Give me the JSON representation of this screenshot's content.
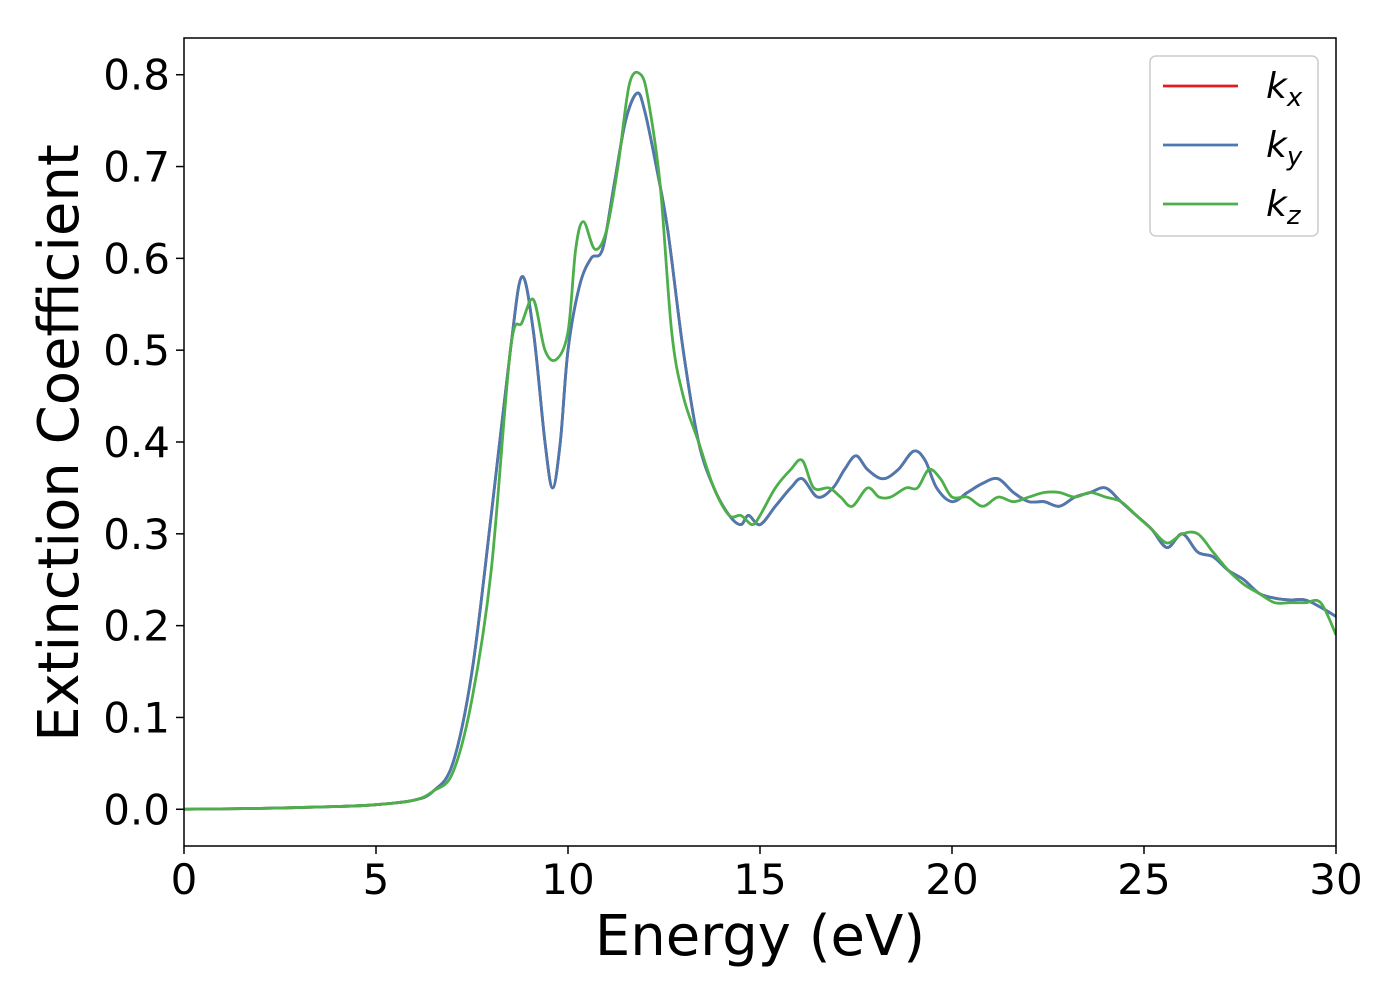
{
  "chart_data": {
    "type": "line",
    "xlabel": "Energy (eV)",
    "ylabel": "Extinction Coefficient",
    "xlim": [
      0,
      30
    ],
    "ylim": [
      -0.04,
      0.84
    ],
    "xticks": [
      0,
      5,
      10,
      15,
      20,
      25,
      30
    ],
    "xtick_labels": [
      "0",
      "5",
      "10",
      "15",
      "20",
      "25",
      "30"
    ],
    "yticks": [
      0.0,
      0.1,
      0.2,
      0.3,
      0.4,
      0.5,
      0.6,
      0.7,
      0.8
    ],
    "ytick_labels": [
      "0.0",
      "0.1",
      "0.2",
      "0.3",
      "0.4",
      "0.5",
      "0.6",
      "0.7",
      "0.8"
    ],
    "grid": false,
    "legend_position": "top-right",
    "series": [
      {
        "name": "k",
        "subscript": "x",
        "color": "#e41a1c",
        "x": [
          0,
          2,
          4,
          5,
          6,
          6.5,
          7,
          7.5,
          8,
          8.5,
          8.8,
          9.1,
          9.4,
          9.6,
          9.8,
          10.0,
          10.3,
          10.6,
          10.9,
          11.2,
          11.5,
          11.8,
          12.0,
          12.3,
          12.6,
          13.0,
          13.4,
          13.8,
          14.2,
          14.5,
          14.7,
          15.0,
          15.4,
          15.8,
          16.1,
          16.5,
          16.9,
          17.2,
          17.5,
          17.8,
          18.2,
          18.6,
          19.0,
          19.3,
          19.6,
          20.0,
          20.4,
          20.8,
          21.2,
          21.6,
          22.0,
          22.4,
          22.8,
          23.2,
          23.6,
          24.0,
          24.4,
          24.8,
          25.2,
          25.6,
          26.0,
          26.4,
          26.8,
          27.2,
          27.6,
          28.0,
          28.4,
          28.8,
          29.2,
          29.6,
          30.0
        ],
        "values": [
          0.0,
          0.001,
          0.003,
          0.005,
          0.01,
          0.02,
          0.05,
          0.15,
          0.32,
          0.5,
          0.58,
          0.52,
          0.4,
          0.35,
          0.4,
          0.5,
          0.57,
          0.6,
          0.61,
          0.68,
          0.75,
          0.78,
          0.76,
          0.7,
          0.63,
          0.5,
          0.4,
          0.35,
          0.32,
          0.31,
          0.32,
          0.31,
          0.33,
          0.35,
          0.36,
          0.34,
          0.35,
          0.37,
          0.385,
          0.37,
          0.36,
          0.37,
          0.39,
          0.38,
          0.35,
          0.335,
          0.345,
          0.355,
          0.36,
          0.345,
          0.335,
          0.335,
          0.33,
          0.34,
          0.345,
          0.35,
          0.335,
          0.32,
          0.305,
          0.285,
          0.3,
          0.28,
          0.275,
          0.26,
          0.25,
          0.235,
          0.23,
          0.228,
          0.228,
          0.22,
          0.21
        ]
      },
      {
        "name": "k",
        "subscript": "y",
        "color": "#4a7ab0",
        "x": [
          0,
          2,
          4,
          5,
          6,
          6.5,
          7,
          7.5,
          8,
          8.5,
          8.8,
          9.1,
          9.4,
          9.6,
          9.8,
          10.0,
          10.3,
          10.6,
          10.9,
          11.2,
          11.5,
          11.8,
          12.0,
          12.3,
          12.6,
          13.0,
          13.4,
          13.8,
          14.2,
          14.5,
          14.7,
          15.0,
          15.4,
          15.8,
          16.1,
          16.5,
          16.9,
          17.2,
          17.5,
          17.8,
          18.2,
          18.6,
          19.0,
          19.3,
          19.6,
          20.0,
          20.4,
          20.8,
          21.2,
          21.6,
          22.0,
          22.4,
          22.8,
          23.2,
          23.6,
          24.0,
          24.4,
          24.8,
          25.2,
          25.6,
          26.0,
          26.4,
          26.8,
          27.2,
          27.6,
          28.0,
          28.4,
          28.8,
          29.2,
          29.6,
          30.0
        ],
        "values": [
          0.0,
          0.001,
          0.003,
          0.005,
          0.01,
          0.02,
          0.05,
          0.15,
          0.32,
          0.5,
          0.58,
          0.52,
          0.4,
          0.35,
          0.4,
          0.5,
          0.57,
          0.6,
          0.61,
          0.68,
          0.75,
          0.78,
          0.76,
          0.7,
          0.63,
          0.5,
          0.4,
          0.35,
          0.32,
          0.31,
          0.32,
          0.31,
          0.33,
          0.35,
          0.36,
          0.34,
          0.35,
          0.37,
          0.385,
          0.37,
          0.36,
          0.37,
          0.39,
          0.38,
          0.35,
          0.335,
          0.345,
          0.355,
          0.36,
          0.345,
          0.335,
          0.335,
          0.33,
          0.34,
          0.345,
          0.35,
          0.335,
          0.32,
          0.305,
          0.285,
          0.3,
          0.28,
          0.275,
          0.26,
          0.25,
          0.235,
          0.23,
          0.228,
          0.228,
          0.22,
          0.21
        ]
      },
      {
        "name": "k",
        "subscript": "z",
        "color": "#4daf4a",
        "x": [
          0,
          2,
          4,
          5,
          6,
          6.5,
          7,
          7.5,
          8,
          8.5,
          8.8,
          9.1,
          9.4,
          9.7,
          10.0,
          10.2,
          10.4,
          10.7,
          11.0,
          11.3,
          11.6,
          11.9,
          12.1,
          12.4,
          12.7,
          13.0,
          13.4,
          13.8,
          14.2,
          14.5,
          14.8,
          15.0,
          15.4,
          15.8,
          16.1,
          16.4,
          16.8,
          17.1,
          17.4,
          17.8,
          18.1,
          18.4,
          18.8,
          19.1,
          19.4,
          19.7,
          20.0,
          20.4,
          20.8,
          21.2,
          21.6,
          22.0,
          22.4,
          22.8,
          23.2,
          23.6,
          24.0,
          24.4,
          24.8,
          25.2,
          25.6,
          26.0,
          26.4,
          26.8,
          27.2,
          27.6,
          28.0,
          28.4,
          28.8,
          29.2,
          29.6,
          30.0
        ],
        "values": [
          0.0,
          0.001,
          0.003,
          0.005,
          0.01,
          0.02,
          0.04,
          0.12,
          0.26,
          0.5,
          0.53,
          0.555,
          0.5,
          0.49,
          0.52,
          0.61,
          0.64,
          0.61,
          0.63,
          0.7,
          0.79,
          0.8,
          0.77,
          0.68,
          0.52,
          0.45,
          0.4,
          0.35,
          0.32,
          0.32,
          0.31,
          0.32,
          0.35,
          0.37,
          0.38,
          0.35,
          0.35,
          0.34,
          0.33,
          0.35,
          0.34,
          0.34,
          0.35,
          0.35,
          0.37,
          0.36,
          0.34,
          0.34,
          0.33,
          0.34,
          0.335,
          0.34,
          0.345,
          0.345,
          0.34,
          0.345,
          0.34,
          0.335,
          0.32,
          0.305,
          0.29,
          0.3,
          0.3,
          0.28,
          0.26,
          0.245,
          0.235,
          0.225,
          0.225,
          0.225,
          0.225,
          0.19
        ]
      }
    ]
  }
}
